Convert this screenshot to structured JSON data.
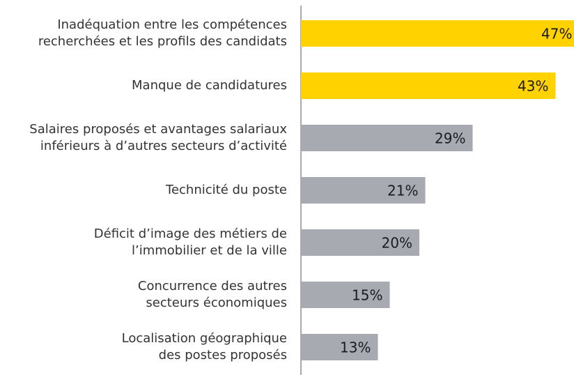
{
  "chart_data": {
    "type": "barh",
    "categories": [
      "Inadéquation entre les compétences\nrecherchées et les profils des candidats",
      "Manque de candidatures",
      "Salaires proposés et avantages salariaux\ninférieurs à d’autres secteurs d’activité",
      "Technicité du poste",
      "Déficit d’image des métiers de\nl’immobilier et de la ville",
      "Concurrence des autres\nsecteurs économiques",
      "Localisation géographique\ndes postes proposés"
    ],
    "values": [
      47,
      43,
      29,
      21,
      20,
      15,
      13
    ],
    "value_labels": [
      "47%",
      "43%",
      "29%",
      "21%",
      "20%",
      "15%",
      "13%"
    ],
    "colors": [
      "#ffd200",
      "#ffd200",
      "#a7aab0",
      "#a7aab0",
      "#a7aab0",
      "#a7aab0",
      "#a7aab0"
    ]
  }
}
